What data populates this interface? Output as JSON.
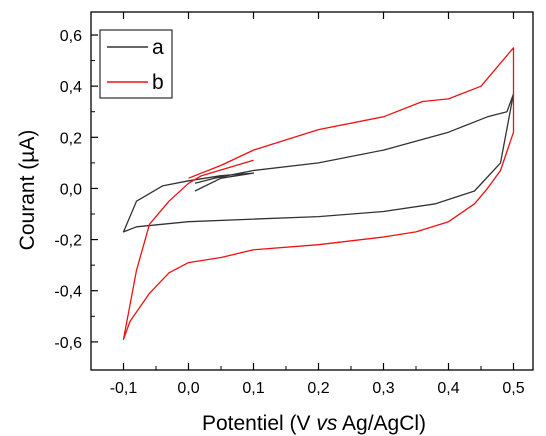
{
  "chart_data": {
    "type": "line",
    "xlabel_parts": [
      "Potentiel (V ",
      "vs",
      " Ag/AgCl)"
    ],
    "ylabel": "Courant (µA)",
    "xlim": [
      -0.15,
      0.53
    ],
    "ylim": [
      -0.71,
      0.69
    ],
    "xticks": [
      -0.1,
      0.0,
      0.1,
      0.2,
      0.3,
      0.4,
      0.5
    ],
    "xtick_labels": [
      "-0,1",
      "0,0",
      "0,1",
      "0,2",
      "0,3",
      "0,4",
      "0,5"
    ],
    "yticks": [
      -0.6,
      -0.4,
      -0.2,
      0.0,
      0.2,
      0.4,
      0.6
    ],
    "ytick_labels": [
      "-0,6",
      "-0,4",
      "-0,2",
      "0,0",
      "0,2",
      "0,4",
      "0,6"
    ],
    "grid": false,
    "legend_position": "top-left",
    "series": [
      {
        "name": "a",
        "color": "#333333",
        "x": [
          0.01,
          0.05,
          0.1,
          0.05,
          0.0,
          -0.04,
          -0.08,
          -0.1,
          -0.08,
          0.0,
          0.1,
          0.2,
          0.3,
          0.38,
          0.44,
          0.48,
          0.5,
          0.49,
          0.46,
          0.4,
          0.3,
          0.2,
          0.1,
          0.04,
          0.01
        ],
        "y": [
          -0.01,
          0.04,
          0.06,
          0.05,
          0.03,
          0.01,
          -0.05,
          -0.17,
          -0.15,
          -0.13,
          -0.12,
          -0.11,
          -0.09,
          -0.06,
          -0.01,
          0.1,
          0.37,
          0.3,
          0.28,
          0.22,
          0.15,
          0.1,
          0.07,
          0.04,
          0.02
        ]
      },
      {
        "name": "b",
        "color": "#ee1111",
        "x": [
          0.1,
          0.06,
          0.02,
          0.0,
          -0.03,
          -0.06,
          -0.08,
          -0.1,
          -0.09,
          -0.06,
          -0.03,
          0.0,
          0.05,
          0.1,
          0.2,
          0.3,
          0.35,
          0.4,
          0.44,
          0.46,
          0.48,
          0.5,
          0.5,
          0.45,
          0.4,
          0.36,
          0.3,
          0.2,
          0.1,
          0.05,
          0.0
        ],
        "y": [
          0.11,
          0.08,
          0.05,
          0.02,
          -0.05,
          -0.14,
          -0.32,
          -0.59,
          -0.52,
          -0.41,
          -0.33,
          -0.29,
          -0.27,
          -0.24,
          -0.22,
          -0.19,
          -0.17,
          -0.13,
          -0.06,
          0.0,
          0.07,
          0.22,
          0.55,
          0.4,
          0.35,
          0.34,
          0.28,
          0.23,
          0.15,
          0.09,
          0.04
        ]
      }
    ]
  }
}
